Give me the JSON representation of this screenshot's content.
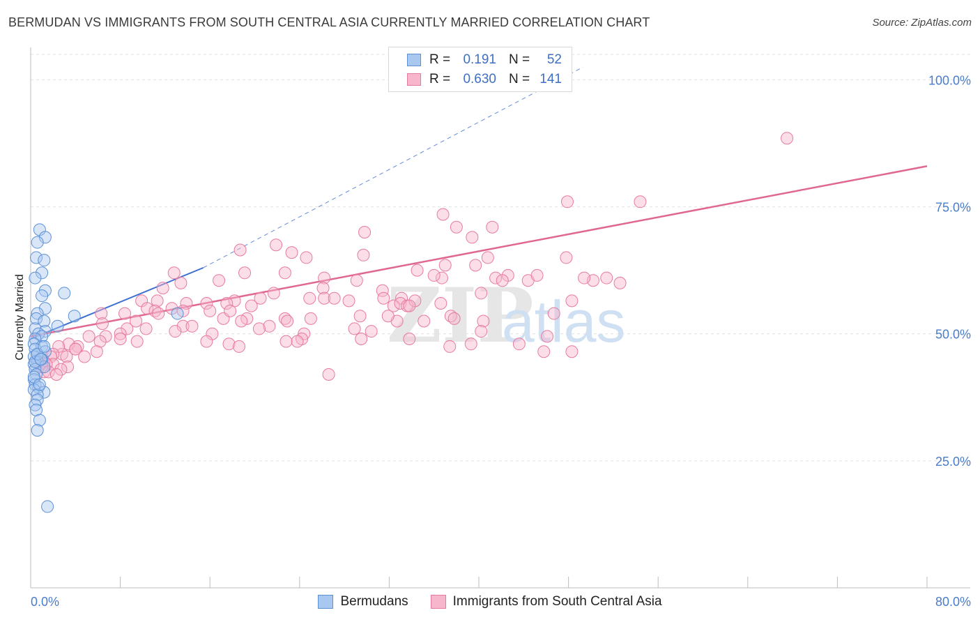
{
  "header": {
    "title": "BERMUDAN VS IMMIGRANTS FROM SOUTH CENTRAL ASIA CURRENTLY MARRIED CORRELATION CHART",
    "source": "Source: ZipAtlas.com"
  },
  "legend": {
    "rows": [
      {
        "r_label": "R =",
        "r_value": "0.191",
        "n_label": "N =",
        "n_value": "52",
        "color": "#a8c8f0",
        "stroke": "#5b8fd6"
      },
      {
        "r_label": "R =",
        "r_value": "0.630",
        "n_label": "N =",
        "n_value": "141",
        "color": "#f7b6cb",
        "stroke": "#e77aa0"
      }
    ]
  },
  "bottom_legend": {
    "items": [
      {
        "label": "Bermudans",
        "color": "#a8c8f0",
        "stroke": "#5b8fd6"
      },
      {
        "label": "Immigrants from South Central Asia",
        "color": "#f7b6cb",
        "stroke": "#e77aa0"
      }
    ]
  },
  "watermark": {
    "zip": "ZIP",
    "atlas": "atlas"
  },
  "colors": {
    "blue_fill": "#a8c8f0",
    "blue_stroke": "#5b8fd6",
    "pink_fill": "#f7b6cb",
    "pink_stroke": "#e77aa0",
    "blue_line": "#3d6fd1",
    "pink_line": "#e0688f",
    "tick_text": "#4a7cc9"
  },
  "chart_data": {
    "type": "scatter",
    "title": "BERMUDAN VS IMMIGRANTS FROM SOUTH CENTRAL ASIA CURRENTLY MARRIED CORRELATION CHART",
    "xlabel": "",
    "ylabel": "Currently Married",
    "xlim": [
      0,
      80
    ],
    "ylim": [
      0,
      105
    ],
    "x_tick_labels": [
      "0.0%",
      "80.0%"
    ],
    "y_ticks": [
      25,
      50,
      75,
      100
    ],
    "y_tick_labels": [
      "25.0%",
      "50.0%",
      "75.0%",
      "100.0%"
    ],
    "grid": true,
    "series": [
      {
        "name": "Bermudans",
        "points": [
          [
            0.8,
            70.5
          ],
          [
            1.3,
            69.0
          ],
          [
            0.6,
            68.0
          ],
          [
            0.5,
            65.0
          ],
          [
            1.2,
            64.5
          ],
          [
            1.0,
            62.0
          ],
          [
            0.4,
            61.0
          ],
          [
            1.3,
            58.5
          ],
          [
            3.0,
            58.0
          ],
          [
            1.0,
            57.5
          ],
          [
            1.3,
            55.0
          ],
          [
            0.6,
            54.0
          ],
          [
            0.5,
            53.0
          ],
          [
            1.2,
            52.5
          ],
          [
            3.9,
            53.5
          ],
          [
            2.4,
            51.5
          ],
          [
            0.4,
            51.0
          ],
          [
            1.3,
            50.5
          ],
          [
            0.7,
            50.0
          ],
          [
            1.0,
            49.5
          ],
          [
            0.4,
            49.0
          ],
          [
            0.3,
            48.0
          ],
          [
            1.0,
            47.5
          ],
          [
            0.4,
            47.0
          ],
          [
            1.3,
            46.5
          ],
          [
            0.6,
            46.0
          ],
          [
            0.3,
            45.5
          ],
          [
            1.0,
            45.0
          ],
          [
            0.6,
            44.5
          ],
          [
            0.3,
            44.0
          ],
          [
            1.2,
            43.5
          ],
          [
            0.4,
            43.0
          ],
          [
            0.5,
            42.0
          ],
          [
            0.3,
            41.0
          ],
          [
            0.4,
            40.0
          ],
          [
            0.7,
            39.5
          ],
          [
            0.3,
            39.0
          ],
          [
            1.2,
            38.5
          ],
          [
            0.6,
            38.0
          ],
          [
            0.6,
            37.0
          ],
          [
            0.4,
            36.0
          ],
          [
            0.5,
            35.0
          ],
          [
            0.8,
            33.0
          ],
          [
            0.6,
            31.0
          ],
          [
            1.5,
            16.0
          ],
          [
            13.1,
            54.0
          ],
          [
            0.4,
            44.5
          ],
          [
            0.3,
            41.5
          ],
          [
            0.8,
            40.0
          ],
          [
            0.6,
            46.0
          ],
          [
            1.2,
            47.5
          ],
          [
            0.9,
            45.0
          ]
        ]
      },
      {
        "name": "Immigrants from South Central Asia",
        "points": [
          [
            67.5,
            88.5
          ],
          [
            36.8,
            73.5
          ],
          [
            47.9,
            76.0
          ],
          [
            54.4,
            76.0
          ],
          [
            38.0,
            71.0
          ],
          [
            29.8,
            70.0
          ],
          [
            41.2,
            71.0
          ],
          [
            39.4,
            69.0
          ],
          [
            21.9,
            67.5
          ],
          [
            18.7,
            66.5
          ],
          [
            23.3,
            66.0
          ],
          [
            29.7,
            65.5
          ],
          [
            24.6,
            65.0
          ],
          [
            37.0,
            63.5
          ],
          [
            40.8,
            65.0
          ],
          [
            47.8,
            65.0
          ],
          [
            39.7,
            63.5
          ],
          [
            34.5,
            62.5
          ],
          [
            19.1,
            62.0
          ],
          [
            12.8,
            62.0
          ],
          [
            22.7,
            62.0
          ],
          [
            42.6,
            61.5
          ],
          [
            36.7,
            61.0
          ],
          [
            36.0,
            61.5
          ],
          [
            26.2,
            61.0
          ],
          [
            29.1,
            60.5
          ],
          [
            16.8,
            60.5
          ],
          [
            44.4,
            60.5
          ],
          [
            41.5,
            61.0
          ],
          [
            42.1,
            60.5
          ],
          [
            50.2,
            60.5
          ],
          [
            52.6,
            60.0
          ],
          [
            13.4,
            60.0
          ],
          [
            11.8,
            59.0
          ],
          [
            26.1,
            59.0
          ],
          [
            31.4,
            58.5
          ],
          [
            26.2,
            57.0
          ],
          [
            20.5,
            57.0
          ],
          [
            24.9,
            57.0
          ],
          [
            9.9,
            56.5
          ],
          [
            18.2,
            56.5
          ],
          [
            33.1,
            57.0
          ],
          [
            11.3,
            56.5
          ],
          [
            31.5,
            57.0
          ],
          [
            17.5,
            56.0
          ],
          [
            12.6,
            55.0
          ],
          [
            13.9,
            56.0
          ],
          [
            32.4,
            55.5
          ],
          [
            33.0,
            56.0
          ],
          [
            10.4,
            55.0
          ],
          [
            15.7,
            56.0
          ],
          [
            11.1,
            54.5
          ],
          [
            6.3,
            54.0
          ],
          [
            6.4,
            52.0
          ],
          [
            8.4,
            54.0
          ],
          [
            17.2,
            53.0
          ],
          [
            16.0,
            54.5
          ],
          [
            11.4,
            54.0
          ],
          [
            19.3,
            53.0
          ],
          [
            18.8,
            52.5
          ],
          [
            22.7,
            53.0
          ],
          [
            25.0,
            53.0
          ],
          [
            29.4,
            53.5
          ],
          [
            32.7,
            52.5
          ],
          [
            9.4,
            52.5
          ],
          [
            10.3,
            51.0
          ],
          [
            8.6,
            51.0
          ],
          [
            8.0,
            50.0
          ],
          [
            13.6,
            51.5
          ],
          [
            6.7,
            49.5
          ],
          [
            5.2,
            49.5
          ],
          [
            14.4,
            51.5
          ],
          [
            21.3,
            51.5
          ],
          [
            28.9,
            51.0
          ],
          [
            20.4,
            51.0
          ],
          [
            24.4,
            50.0
          ],
          [
            30.4,
            50.5
          ],
          [
            33.8,
            49.0
          ],
          [
            29.5,
            49.0
          ],
          [
            24.2,
            49.0
          ],
          [
            23.8,
            48.5
          ],
          [
            16.2,
            50.0
          ],
          [
            15.7,
            48.5
          ],
          [
            17.7,
            48.0
          ],
          [
            18.6,
            47.5
          ],
          [
            6.2,
            48.5
          ],
          [
            4.2,
            47.5
          ],
          [
            2.8,
            46.0
          ],
          [
            3.4,
            48.0
          ],
          [
            4.0,
            47.0
          ],
          [
            2.5,
            47.5
          ],
          [
            2.0,
            46.0
          ],
          [
            1.8,
            45.5
          ],
          [
            3.2,
            45.5
          ],
          [
            1.2,
            44.5
          ],
          [
            2.0,
            44.0
          ],
          [
            1.4,
            44.0
          ],
          [
            3.3,
            43.5
          ],
          [
            2.7,
            43.0
          ],
          [
            1.2,
            42.5
          ],
          [
            0.9,
            45.0
          ],
          [
            0.7,
            44.5
          ],
          [
            1.0,
            43.5
          ],
          [
            1.6,
            42.5
          ],
          [
            2.3,
            42.0
          ],
          [
            4.0,
            47.0
          ],
          [
            4.8,
            45.5
          ],
          [
            5.9,
            46.5
          ],
          [
            8.0,
            49.0
          ],
          [
            9.5,
            48.5
          ],
          [
            13.6,
            54.5
          ],
          [
            21.7,
            58.0
          ],
          [
            45.2,
            61.5
          ],
          [
            40.2,
            58.0
          ],
          [
            28.4,
            56.5
          ],
          [
            36.6,
            56.0
          ],
          [
            37.5,
            53.5
          ],
          [
            37.8,
            53.0
          ],
          [
            31.9,
            53.5
          ],
          [
            33.6,
            55.5
          ],
          [
            34.3,
            56.5
          ],
          [
            49.4,
            61.0
          ],
          [
            51.4,
            61.0
          ],
          [
            48.3,
            56.5
          ],
          [
            46.7,
            54.0
          ],
          [
            40.4,
            52.5
          ],
          [
            40.2,
            50.5
          ],
          [
            37.4,
            47.5
          ],
          [
            39.3,
            48.0
          ],
          [
            43.6,
            48.0
          ],
          [
            46.1,
            49.5
          ],
          [
            45.8,
            46.5
          ],
          [
            48.3,
            46.5
          ],
          [
            26.6,
            42.0
          ],
          [
            35.1,
            52.5
          ],
          [
            33.8,
            55.5
          ],
          [
            22.9,
            52.5
          ],
          [
            27.1,
            57.0
          ],
          [
            19.7,
            55.5
          ],
          [
            17.8,
            54.5
          ],
          [
            12.9,
            50.5
          ],
          [
            22.8,
            48.5
          ]
        ]
      }
    ],
    "trend_lines": [
      {
        "series": "Bermudans",
        "x": [
          0.0,
          15.4
        ],
        "y": [
          49.0,
          63.0
        ],
        "dashed_extension": {
          "x": [
            15.4,
            49.3
          ],
          "y": [
            63.0,
            102.5
          ]
        }
      },
      {
        "series": "Immigrants from South Central Asia",
        "x": [
          0.0,
          80.0
        ],
        "y": [
          49.5,
          83.0
        ]
      }
    ]
  }
}
